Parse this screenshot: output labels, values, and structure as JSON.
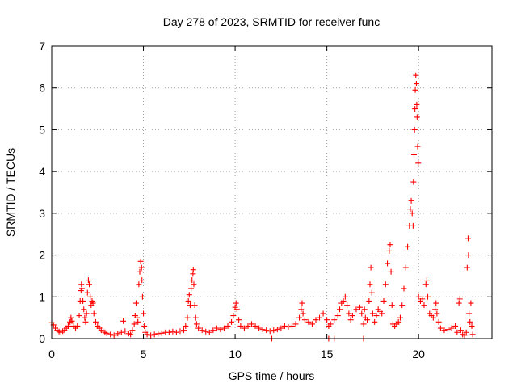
{
  "chart_data": {
    "type": "scatter",
    "title": "Day 278 of 2023, SRMTID for receiver func",
    "xlabel": "GPS time / hours",
    "ylabel": "SRMTID / TECUs",
    "xlim": [
      0,
      24
    ],
    "ylim": [
      0,
      7
    ],
    "xticks": [
      0,
      5,
      10,
      15,
      20
    ],
    "yticks": [
      0,
      1,
      2,
      3,
      4,
      5,
      6,
      7
    ],
    "grid": true,
    "marker": "+",
    "color": "#ff0000",
    "series": [
      {
        "name": "SRMTID",
        "points": [
          [
            0.0,
            0.38
          ],
          [
            0.1,
            0.33
          ],
          [
            0.2,
            0.25
          ],
          [
            0.3,
            0.2
          ],
          [
            0.4,
            0.17
          ],
          [
            0.5,
            0.15
          ],
          [
            0.6,
            0.18
          ],
          [
            0.7,
            0.2
          ],
          [
            0.8,
            0.25
          ],
          [
            0.9,
            0.3
          ],
          [
            1.0,
            0.4
          ],
          [
            1.05,
            0.5
          ],
          [
            1.1,
            0.42
          ],
          [
            1.2,
            0.3
          ],
          [
            1.3,
            0.25
          ],
          [
            1.4,
            0.3
          ],
          [
            1.5,
            0.55
          ],
          [
            1.55,
            0.9
          ],
          [
            1.6,
            1.15
          ],
          [
            1.62,
            1.3
          ],
          [
            1.65,
            1.2
          ],
          [
            1.7,
            0.9
          ],
          [
            1.75,
            0.7
          ],
          [
            1.8,
            0.5
          ],
          [
            1.85,
            0.4
          ],
          [
            1.9,
            0.6
          ],
          [
            1.95,
            1.1
          ],
          [
            2.0,
            1.4
          ],
          [
            2.05,
            1.3
          ],
          [
            2.1,
            1.0
          ],
          [
            2.15,
            0.8
          ],
          [
            2.2,
            0.9
          ],
          [
            2.25,
            0.85
          ],
          [
            2.3,
            0.6
          ],
          [
            2.4,
            0.4
          ],
          [
            2.5,
            0.3
          ],
          [
            2.6,
            0.25
          ],
          [
            2.7,
            0.2
          ],
          [
            2.8,
            0.18
          ],
          [
            2.9,
            0.15
          ],
          [
            3.0,
            0.13
          ],
          [
            3.2,
            0.1
          ],
          [
            3.4,
            0.08
          ],
          [
            3.6,
            0.12
          ],
          [
            3.8,
            0.15
          ],
          [
            3.9,
            0.42
          ],
          [
            4.0,
            0.18
          ],
          [
            4.2,
            0.12
          ],
          [
            4.3,
            0.1
          ],
          [
            4.4,
            0.2
          ],
          [
            4.5,
            0.35
          ],
          [
            4.55,
            0.55
          ],
          [
            4.6,
            0.85
          ],
          [
            4.65,
            0.5
          ],
          [
            4.7,
            0.4
          ],
          [
            4.75,
            1.3
          ],
          [
            4.8,
            1.6
          ],
          [
            4.85,
            1.85
          ],
          [
            4.9,
            1.7
          ],
          [
            4.92,
            1.4
          ],
          [
            4.95,
            1.0
          ],
          [
            5.0,
            0.6
          ],
          [
            5.05,
            0.3
          ],
          [
            5.1,
            0.15
          ],
          [
            5.2,
            0.1
          ],
          [
            5.4,
            0.08
          ],
          [
            5.6,
            0.1
          ],
          [
            5.8,
            0.12
          ],
          [
            6.0,
            0.13
          ],
          [
            6.2,
            0.15
          ],
          [
            6.4,
            0.15
          ],
          [
            6.6,
            0.17
          ],
          [
            6.8,
            0.15
          ],
          [
            7.0,
            0.18
          ],
          [
            7.2,
            0.2
          ],
          [
            7.3,
            0.3
          ],
          [
            7.4,
            0.5
          ],
          [
            7.45,
            0.9
          ],
          [
            7.5,
            1.05
          ],
          [
            7.55,
            0.8
          ],
          [
            7.6,
            1.2
          ],
          [
            7.65,
            1.4
          ],
          [
            7.7,
            1.55
          ],
          [
            7.72,
            1.65
          ],
          [
            7.75,
            1.3
          ],
          [
            7.8,
            0.8
          ],
          [
            7.85,
            0.5
          ],
          [
            7.9,
            0.35
          ],
          [
            8.0,
            0.25
          ],
          [
            8.2,
            0.2
          ],
          [
            8.4,
            0.17
          ],
          [
            8.6,
            0.15
          ],
          [
            8.8,
            0.2
          ],
          [
            9.0,
            0.25
          ],
          [
            9.2,
            0.22
          ],
          [
            9.4,
            0.25
          ],
          [
            9.6,
            0.3
          ],
          [
            9.8,
            0.4
          ],
          [
            9.9,
            0.55
          ],
          [
            10.0,
            0.75
          ],
          [
            10.05,
            0.85
          ],
          [
            10.1,
            0.7
          ],
          [
            10.2,
            0.45
          ],
          [
            10.3,
            0.3
          ],
          [
            10.5,
            0.25
          ],
          [
            10.7,
            0.3
          ],
          [
            10.9,
            0.35
          ],
          [
            11.1,
            0.3
          ],
          [
            11.3,
            0.25
          ],
          [
            11.5,
            0.22
          ],
          [
            11.7,
            0.2
          ],
          [
            11.9,
            0.18
          ],
          [
            12.1,
            0.2
          ],
          [
            12.3,
            0.22
          ],
          [
            12.5,
            0.25
          ],
          [
            12.7,
            0.3
          ],
          [
            12.9,
            0.28
          ],
          [
            13.1,
            0.3
          ],
          [
            13.3,
            0.35
          ],
          [
            13.5,
            0.5
          ],
          [
            13.6,
            0.7
          ],
          [
            13.65,
            0.85
          ],
          [
            13.7,
            0.6
          ],
          [
            13.8,
            0.45
          ],
          [
            14.0,
            0.4
          ],
          [
            14.2,
            0.35
          ],
          [
            14.4,
            0.45
          ],
          [
            14.6,
            0.5
          ],
          [
            14.8,
            0.6
          ],
          [
            15.0,
            0.45
          ],
          [
            15.1,
            0.3
          ],
          [
            15.2,
            0.35
          ],
          [
            15.4,
            0.45
          ],
          [
            15.6,
            0.55
          ],
          [
            15.7,
            0.7
          ],
          [
            15.8,
            0.85
          ],
          [
            15.9,
            0.9
          ],
          [
            16.0,
            1.0
          ],
          [
            16.1,
            0.8
          ],
          [
            16.2,
            0.6
          ],
          [
            16.3,
            0.45
          ],
          [
            16.4,
            0.55
          ],
          [
            16.6,
            0.7
          ],
          [
            16.8,
            0.75
          ],
          [
            16.9,
            0.6
          ],
          [
            17.0,
            0.35
          ],
          [
            17.05,
            0.7
          ],
          [
            17.1,
            0.5
          ],
          [
            17.2,
            0.45
          ],
          [
            17.3,
            0.9
          ],
          [
            17.35,
            1.3
          ],
          [
            17.4,
            1.7
          ],
          [
            17.45,
            1.1
          ],
          [
            17.5,
            0.6
          ],
          [
            17.6,
            0.4
          ],
          [
            17.7,
            0.55
          ],
          [
            17.8,
            0.7
          ],
          [
            17.9,
            0.65
          ],
          [
            18.0,
            0.6
          ],
          [
            18.1,
            0.9
          ],
          [
            18.2,
            1.3
          ],
          [
            18.3,
            1.8
          ],
          [
            18.4,
            2.1
          ],
          [
            18.45,
            2.25
          ],
          [
            18.5,
            1.6
          ],
          [
            18.55,
            0.8
          ],
          [
            18.6,
            0.35
          ],
          [
            18.7,
            0.3
          ],
          [
            18.8,
            0.35
          ],
          [
            18.9,
            0.4
          ],
          [
            19.0,
            0.5
          ],
          [
            19.1,
            0.8
          ],
          [
            19.2,
            1.2
          ],
          [
            19.3,
            1.7
          ],
          [
            19.4,
            2.2
          ],
          [
            19.5,
            2.7
          ],
          [
            19.55,
            3.1
          ],
          [
            19.6,
            3.3
          ],
          [
            19.65,
            3.0
          ],
          [
            19.7,
            2.7
          ],
          [
            19.72,
            3.75
          ],
          [
            19.75,
            4.4
          ],
          [
            19.78,
            5.0
          ],
          [
            19.8,
            5.5
          ],
          [
            19.82,
            5.95
          ],
          [
            19.85,
            6.3
          ],
          [
            19.88,
            6.1
          ],
          [
            19.9,
            5.6
          ],
          [
            19.92,
            5.3
          ],
          [
            19.95,
            4.6
          ],
          [
            19.98,
            4.2
          ],
          [
            20.0,
            1.0
          ],
          [
            20.1,
            0.9
          ],
          [
            20.2,
            0.95
          ],
          [
            20.3,
            0.8
          ],
          [
            20.4,
            1.3
          ],
          [
            20.45,
            1.4
          ],
          [
            20.5,
            1.0
          ],
          [
            20.6,
            0.6
          ],
          [
            20.7,
            0.55
          ],
          [
            20.8,
            0.5
          ],
          [
            20.9,
            0.7
          ],
          [
            20.95,
            0.85
          ],
          [
            21.0,
            0.6
          ],
          [
            21.1,
            0.4
          ],
          [
            21.2,
            0.25
          ],
          [
            21.4,
            0.2
          ],
          [
            21.6,
            0.22
          ],
          [
            21.8,
            0.25
          ],
          [
            22.0,
            0.3
          ],
          [
            22.1,
            0.15
          ],
          [
            22.2,
            0.85
          ],
          [
            22.25,
            0.95
          ],
          [
            22.3,
            0.2
          ],
          [
            22.4,
            0.1
          ],
          [
            22.5,
            0.08
          ],
          [
            22.6,
            0.15
          ],
          [
            22.65,
            1.7
          ],
          [
            22.7,
            2.4
          ],
          [
            22.72,
            2.0
          ],
          [
            22.75,
            0.6
          ],
          [
            22.8,
            0.4
          ],
          [
            22.85,
            0.85
          ],
          [
            22.9,
            0.3
          ],
          [
            22.95,
            0.1
          ],
          [
            12.0,
            0.0
          ],
          [
            15.1,
            0.0
          ],
          [
            15.4,
            0.0
          ],
          [
            17.0,
            0.0
          ]
        ]
      }
    ]
  }
}
